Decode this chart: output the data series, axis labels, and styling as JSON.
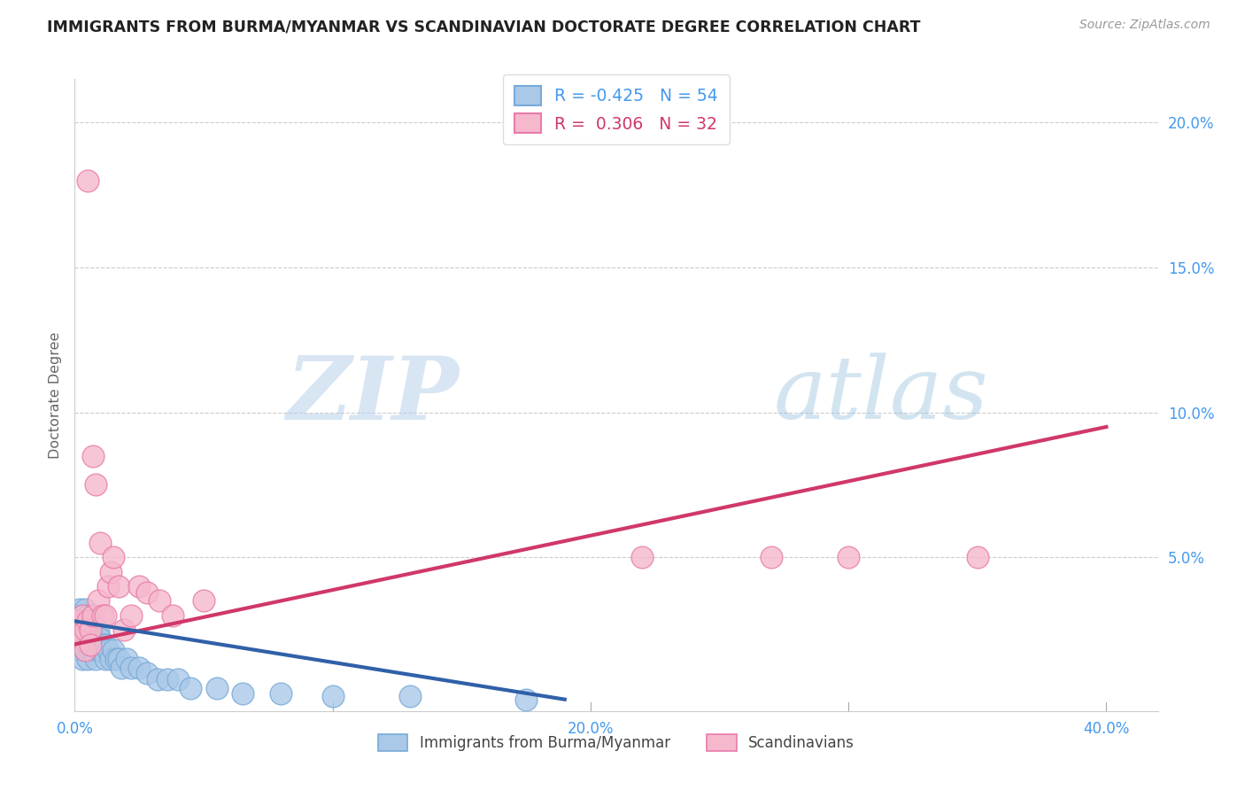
{
  "title": "IMMIGRANTS FROM BURMA/MYANMAR VS SCANDINAVIAN DOCTORATE DEGREE CORRELATION CHART",
  "source": "Source: ZipAtlas.com",
  "ylabel": "Doctorate Degree",
  "xlim": [
    0.0,
    0.42
  ],
  "ylim": [
    -0.003,
    0.215
  ],
  "yticks": [
    0.0,
    0.05,
    0.1,
    0.15,
    0.2
  ],
  "ytick_labels": [
    "",
    "5.0%",
    "10.0%",
    "15.0%",
    "20.0%"
  ],
  "xticks": [
    0.0,
    0.1,
    0.2,
    0.3,
    0.4
  ],
  "xtick_labels": [
    "0.0%",
    "",
    "20.0%",
    "",
    "40.0%"
  ],
  "blue_color": "#aac8e8",
  "blue_edge": "#78aad8",
  "pink_color": "#f5b8cc",
  "pink_edge": "#e87aaa",
  "trend_blue": "#3060a8",
  "trend_pink": "#d03868",
  "legend_R_blue": "-0.425",
  "legend_N_blue": "54",
  "legend_R_pink": "0.306",
  "legend_N_pink": "32",
  "label_blue": "Immigrants from Burma/Myanmar",
  "label_pink": "Scandinavians",
  "blue_x": [
    0.001,
    0.001,
    0.001,
    0.002,
    0.002,
    0.002,
    0.003,
    0.003,
    0.003,
    0.003,
    0.004,
    0.004,
    0.004,
    0.004,
    0.005,
    0.005,
    0.005,
    0.005,
    0.006,
    0.006,
    0.006,
    0.007,
    0.007,
    0.007,
    0.008,
    0.008,
    0.008,
    0.009,
    0.009,
    0.01,
    0.01,
    0.011,
    0.012,
    0.012,
    0.013,
    0.014,
    0.015,
    0.016,
    0.017,
    0.018,
    0.02,
    0.022,
    0.025,
    0.028,
    0.032,
    0.036,
    0.04,
    0.045,
    0.055,
    0.065,
    0.08,
    0.1,
    0.13,
    0.175
  ],
  "blue_y": [
    0.03,
    0.025,
    0.022,
    0.028,
    0.032,
    0.018,
    0.03,
    0.025,
    0.02,
    0.015,
    0.032,
    0.028,
    0.022,
    0.018,
    0.03,
    0.025,
    0.02,
    0.015,
    0.028,
    0.022,
    0.018,
    0.027,
    0.022,
    0.018,
    0.025,
    0.02,
    0.015,
    0.025,
    0.018,
    0.022,
    0.018,
    0.02,
    0.02,
    0.015,
    0.018,
    0.015,
    0.018,
    0.015,
    0.015,
    0.012,
    0.015,
    0.012,
    0.012,
    0.01,
    0.008,
    0.008,
    0.008,
    0.005,
    0.005,
    0.003,
    0.003,
    0.002,
    0.002,
    0.001
  ],
  "pink_x": [
    0.001,
    0.002,
    0.003,
    0.003,
    0.004,
    0.004,
    0.005,
    0.005,
    0.006,
    0.006,
    0.007,
    0.007,
    0.008,
    0.009,
    0.01,
    0.011,
    0.012,
    0.013,
    0.014,
    0.015,
    0.017,
    0.019,
    0.022,
    0.025,
    0.028,
    0.033,
    0.038,
    0.22,
    0.27,
    0.3,
    0.35,
    0.05
  ],
  "pink_y": [
    0.025,
    0.028,
    0.03,
    0.022,
    0.025,
    0.018,
    0.18,
    0.028,
    0.025,
    0.02,
    0.085,
    0.03,
    0.075,
    0.035,
    0.055,
    0.03,
    0.03,
    0.04,
    0.045,
    0.05,
    0.04,
    0.025,
    0.03,
    0.04,
    0.038,
    0.035,
    0.03,
    0.05,
    0.05,
    0.05,
    0.05,
    0.035
  ],
  "trend_pink_x0": 0.0,
  "trend_pink_x1": 0.4,
  "trend_pink_y0": 0.02,
  "trend_pink_y1": 0.095,
  "trend_blue_x0": 0.0,
  "trend_blue_x1": 0.19,
  "trend_blue_y0": 0.028,
  "trend_blue_y1": 0.001
}
